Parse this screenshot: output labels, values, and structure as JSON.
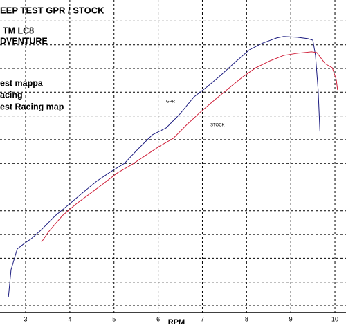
{
  "chart_data": {
    "type": "line",
    "title": "EEP TEST  GPR / STOCK",
    "annotations": [
      "TM LC8",
      "DVENTURE",
      "est mappa",
      "acing",
      "est Racing map"
    ],
    "x_label": "RPM",
    "xlim": [
      2.42,
      10.25
    ],
    "xticks": [
      3,
      4,
      5,
      6,
      7,
      8,
      9,
      10
    ],
    "ylim": [
      0,
      13.1
    ],
    "grid": true,
    "series": [
      {
        "name": "GPR",
        "color": "#1c1c80",
        "x": [
          2.61,
          2.67,
          2.81,
          2.97,
          3.13,
          3.36,
          3.67,
          3.99,
          4.3,
          4.61,
          4.93,
          5.24,
          5.55,
          5.87,
          6.18,
          6.49,
          6.81,
          7.12,
          7.43,
          7.74,
          8.06,
          8.37,
          8.68,
          8.84,
          9.15,
          9.39,
          9.5,
          9.56,
          9.62,
          9.66
        ],
        "values": [
          0.64,
          1.8,
          2.67,
          2.9,
          3.1,
          3.48,
          4.06,
          4.55,
          5.04,
          5.51,
          5.91,
          6.26,
          6.87,
          7.45,
          7.74,
          8.32,
          9.04,
          9.48,
          9.97,
          10.49,
          11.01,
          11.3,
          11.51,
          11.57,
          11.54,
          11.48,
          11.42,
          10.78,
          9.33,
          7.59
        ]
      },
      {
        "name": "STOCK",
        "color": "#d0203a",
        "x": [
          3.36,
          3.52,
          3.83,
          4.14,
          4.46,
          4.77,
          5.08,
          5.4,
          5.71,
          6.02,
          6.34,
          6.65,
          6.96,
          7.27,
          7.59,
          7.9,
          8.21,
          8.53,
          8.84,
          9.15,
          9.47,
          9.59,
          9.78,
          9.94,
          10.03,
          10.06
        ],
        "values": [
          2.96,
          3.39,
          4.06,
          4.55,
          4.99,
          5.42,
          5.86,
          6.2,
          6.58,
          6.96,
          7.3,
          7.88,
          8.41,
          8.9,
          9.39,
          9.86,
          10.26,
          10.55,
          10.78,
          10.87,
          10.93,
          10.9,
          10.43,
          10.26,
          9.77,
          9.33
        ]
      }
    ]
  }
}
